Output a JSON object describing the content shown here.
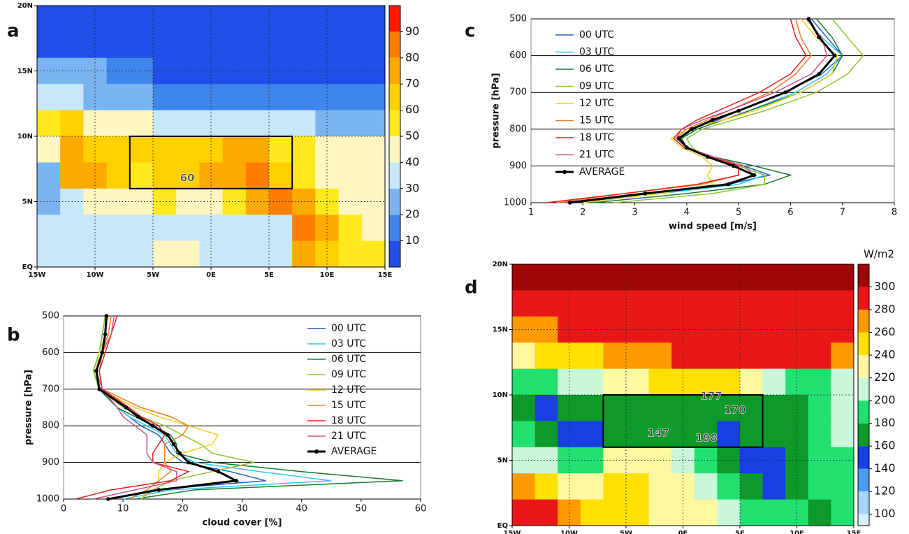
{
  "chart_data": [
    {
      "type": "map",
      "panel": "a",
      "xlim": [
        -15,
        15
      ],
      "ylim": [
        0,
        20
      ],
      "xticks": [
        {
          "value": -15,
          "label": "15W"
        },
        {
          "value": -10,
          "label": "10W"
        },
        {
          "value": -5,
          "label": "5W"
        },
        {
          "value": 0,
          "label": "0E"
        },
        {
          "value": 5,
          "label": "5E"
        },
        {
          "value": 10,
          "label": "10E"
        },
        {
          "value": 15,
          "label": "15E"
        }
      ],
      "yticks": [
        {
          "value": 0,
          "label": "EQ"
        },
        {
          "value": 5,
          "label": "5N"
        },
        {
          "value": 10,
          "label": "10N"
        },
        {
          "value": 15,
          "label": "15N"
        },
        {
          "value": 20,
          "label": "20N"
        }
      ],
      "clim": [
        0,
        100
      ],
      "cticks": [
        10,
        20,
        30,
        40,
        50,
        60,
        70,
        80,
        90
      ],
      "colors": [
        "#2050e8",
        "#3f86ec",
        "#7ab4f0",
        "#c6e8f8",
        "#fff6c0",
        "#ffe81e",
        "#ffd000",
        "#ffaa00",
        "#ff7e00",
        "#ff1a00"
      ],
      "annotations": [
        "60"
      ],
      "cells": [
        [
          5,
          5,
          5,
          5,
          5,
          5,
          5,
          5,
          5,
          5,
          5,
          5,
          5,
          5,
          5
        ],
        [
          5,
          5,
          5,
          5,
          5,
          5,
          5,
          5,
          5,
          5,
          5,
          5,
          5,
          5,
          5
        ],
        [
          25,
          25,
          25,
          15,
          15,
          5,
          5,
          5,
          5,
          5,
          5,
          5,
          5,
          5,
          5
        ],
        [
          35,
          30,
          25,
          25,
          20,
          15,
          15,
          15,
          15,
          15,
          10,
          10,
          15,
          15,
          15
        ],
        [
          55,
          60,
          45,
          40,
          40,
          35,
          35,
          35,
          30,
          30,
          30,
          30,
          25,
          25,
          25
        ],
        [
          45,
          75,
          65,
          60,
          60,
          60,
          60,
          65,
          75,
          75,
          55,
          50,
          45,
          45,
          45
        ],
        [
          25,
          75,
          75,
          65,
          55,
          60,
          65,
          70,
          75,
          80,
          65,
          50,
          45,
          45,
          40
        ],
        [
          25,
          35,
          45,
          40,
          45,
          50,
          45,
          45,
          55,
          75,
          85,
          75,
          55,
          45,
          45
        ],
        [
          35,
          35,
          35,
          35,
          35,
          35,
          35,
          35,
          35,
          35,
          35,
          80,
          75,
          50,
          45
        ],
        [
          35,
          35,
          35,
          35,
          35,
          45,
          45,
          35,
          35,
          35,
          35,
          70,
          65,
          55,
          55
        ]
      ]
    },
    {
      "type": "line",
      "panel": "b",
      "xlabel": "cloud cover [%]",
      "ylabel": "pressure [hPa]",
      "xlim": [
        0,
        60
      ],
      "xticks": [
        0,
        10,
        20,
        30,
        40,
        50,
        60
      ],
      "ylim": [
        500,
        1000
      ],
      "yreverse": true,
      "yticks": [
        500,
        600,
        700,
        800,
        900,
        1000
      ],
      "y": [
        500,
        550,
        600,
        650,
        700,
        750,
        775,
        800,
        825,
        850,
        875,
        900,
        925,
        950,
        975,
        1000
      ],
      "series": [
        {
          "name": "00 UTC",
          "color": "#1f5fbf",
          "values": [
            7,
            6.5,
            6,
            5,
            6,
            9,
            11,
            13,
            16,
            17,
            18,
            20,
            28,
            34,
            15,
            8
          ]
        },
        {
          "name": "03 UTC",
          "color": "#2ec8f0",
          "values": [
            7,
            6.5,
            6,
            5,
            6,
            9,
            11,
            14,
            17,
            18,
            19,
            22,
            33,
            45,
            18,
            10
          ]
        },
        {
          "name": "06 UTC",
          "color": "#1a7a30",
          "values": [
            7.5,
            7,
            6,
            5,
            6,
            9,
            12,
            15,
            18,
            19,
            19,
            25,
            40,
            57,
            22,
            12
          ]
        },
        {
          "name": "09 UTC",
          "color": "#8cc832",
          "values": [
            7,
            6.5,
            6,
            5,
            6,
            10,
            13,
            17,
            20,
            23,
            25,
            32,
            25,
            18,
            15,
            13
          ]
        },
        {
          "name": "12 UTC",
          "color": "#f0d020",
          "values": [
            7.5,
            7,
            6,
            5.5,
            6,
            12,
            16,
            21,
            26,
            25,
            20,
            17,
            16,
            16,
            14,
            13
          ]
        },
        {
          "name": "15 UTC",
          "color": "#f08020",
          "values": [
            8,
            7.5,
            6.5,
            6,
            6.5,
            13,
            18,
            21,
            20,
            17,
            17,
            17,
            18,
            16,
            14,
            11
          ]
        },
        {
          "name": "18 UTC",
          "color": "#e02020",
          "values": [
            9,
            8,
            7,
            6,
            6.5,
            11,
            13,
            16,
            17,
            16,
            15,
            15,
            21,
            18,
            8,
            2
          ]
        },
        {
          "name": "21 UTC",
          "color": "#d0508a",
          "values": [
            8.5,
            8,
            6.5,
            5.5,
            6.5,
            9,
            10,
            12,
            14,
            14,
            14,
            15,
            19,
            19,
            12,
            5
          ]
        },
        {
          "name": "AVERAGE",
          "color": "#000000",
          "markers": true,
          "values": [
            7.2,
            7,
            6.5,
            5.5,
            6,
            10.5,
            12.5,
            15,
            17.5,
            18.5,
            19.5,
            21,
            26,
            29,
            16,
            7.5
          ]
        }
      ]
    },
    {
      "type": "line",
      "panel": "c",
      "xlabel": "wind speed [m/s]",
      "ylabel": "pressure [hPa]",
      "xlim": [
        1,
        8
      ],
      "xticks": [
        1,
        2,
        3,
        4,
        5,
        6,
        7,
        8
      ],
      "ylim": [
        500,
        1000
      ],
      "yreverse": true,
      "yticks": [
        500,
        600,
        700,
        800,
        900,
        1000
      ],
      "y": [
        500,
        550,
        600,
        650,
        700,
        750,
        775,
        800,
        825,
        850,
        875,
        900,
        925,
        950,
        975,
        1000
      ],
      "series": [
        {
          "name": "00 UTC",
          "color": "#1f5fbf",
          "values": [
            6.4,
            6.7,
            7.0,
            6.6,
            5.9,
            5.0,
            4.6,
            4.1,
            3.9,
            4.0,
            4.5,
            5.1,
            5.6,
            4.8,
            3.3,
            1.8
          ]
        },
        {
          "name": "03 UTC",
          "color": "#2ec8f0",
          "values": [
            6.3,
            6.6,
            7.0,
            6.7,
            6.1,
            5.2,
            4.7,
            4.2,
            3.9,
            4.0,
            4.4,
            5.0,
            5.5,
            5.0,
            3.5,
            2.0
          ]
        },
        {
          "name": "06 UTC",
          "color": "#1a7a30",
          "values": [
            6.5,
            6.8,
            7.0,
            6.8,
            6.2,
            5.2,
            4.7,
            4.2,
            3.9,
            4.0,
            4.5,
            5.3,
            6.0,
            5.5,
            4.0,
            2.2
          ]
        },
        {
          "name": "09 UTC",
          "color": "#8cc832",
          "values": [
            6.8,
            7.1,
            7.4,
            7.1,
            6.5,
            5.5,
            4.9,
            4.3,
            4.0,
            4.1,
            4.4,
            5.0,
            5.5,
            5.5,
            4.5,
            2.6
          ]
        },
        {
          "name": "12 UTC",
          "color": "#f0d020",
          "values": [
            6.2,
            6.5,
            6.9,
            6.8,
            6.2,
            5.3,
            4.7,
            4.0,
            3.7,
            3.9,
            4.3,
            4.5,
            4.4,
            4.5,
            3.5,
            2.0
          ]
        },
        {
          "name": "15 UTC",
          "color": "#f08020",
          "values": [
            6.1,
            6.2,
            6.4,
            6.1,
            5.6,
            4.8,
            4.4,
            4.0,
            3.8,
            4.0,
            4.5,
            5.0,
            5.0,
            4.3,
            2.8,
            1.5
          ]
        },
        {
          "name": "18 UTC",
          "color": "#e02020",
          "values": [
            6.0,
            6.1,
            6.3,
            6.0,
            5.4,
            4.6,
            4.2,
            3.9,
            3.75,
            3.95,
            4.5,
            5.0,
            5.0,
            4.2,
            2.8,
            1.3
          ]
        },
        {
          "name": "21 UTC",
          "color": "#d0508a",
          "values": [
            6.3,
            6.6,
            6.7,
            6.4,
            5.7,
            4.8,
            4.3,
            3.9,
            3.8,
            4.0,
            4.5,
            5.1,
            5.3,
            4.7,
            3.1,
            1.6
          ]
        },
        {
          "name": "AVERAGE",
          "color": "#000000",
          "markers": true,
          "values": [
            6.35,
            6.55,
            6.85,
            6.55,
            5.9,
            5.0,
            4.5,
            4.1,
            3.85,
            4.0,
            4.4,
            4.9,
            5.3,
            4.8,
            3.2,
            1.75
          ]
        }
      ]
    },
    {
      "type": "map",
      "panel": "d",
      "colorbar_label": "W/m2",
      "xlim": [
        -15,
        15
      ],
      "ylim": [
        0,
        20
      ],
      "xticks": [
        {
          "value": -15,
          "label": "15W"
        },
        {
          "value": -10,
          "label": "10W"
        },
        {
          "value": -5,
          "label": "5W"
        },
        {
          "value": 0,
          "label": "0E"
        },
        {
          "value": 5,
          "label": "5E"
        },
        {
          "value": 10,
          "label": "10E"
        },
        {
          "value": 15,
          "label": "15E"
        }
      ],
      "yticks": [
        {
          "value": 0,
          "label": "EQ"
        },
        {
          "value": 5,
          "label": "5N"
        },
        {
          "value": 10,
          "label": "10N"
        },
        {
          "value": 15,
          "label": "15N"
        },
        {
          "value": 20,
          "label": "20N"
        }
      ],
      "clim": [
        90,
        320
      ],
      "cticks": [
        100,
        120,
        140,
        160,
        180,
        200,
        220,
        240,
        260,
        280,
        300
      ],
      "colors": [
        "#d6f0ff",
        "#a6d4ff",
        "#4a9cf0",
        "#1840e0",
        "#0e9a2a",
        "#22e070",
        "#c8f8d8",
        "#fff8a0",
        "#ffe000",
        "#ff9a00",
        "#e81818",
        "#a00808"
      ],
      "annotations": [
        "177",
        "170",
        "147",
        "198"
      ],
      "cells": [
        [
          310,
          310,
          310,
          310,
          310,
          310,
          310,
          310,
          310,
          310,
          310,
          310,
          310,
          310,
          310
        ],
        [
          295,
          295,
          295,
          295,
          295,
          295,
          295,
          295,
          295,
          295,
          295,
          295,
          295,
          295,
          295
        ],
        [
          265,
          270,
          280,
          285,
          290,
          290,
          290,
          290,
          290,
          290,
          290,
          290,
          290,
          290,
          290
        ],
        [
          230,
          240,
          250,
          255,
          265,
          270,
          275,
          280,
          285,
          285,
          285,
          285,
          285,
          280,
          275
        ],
        [
          190,
          195,
          205,
          215,
          225,
          235,
          240,
          245,
          250,
          240,
          220,
          200,
          185,
          190,
          210
        ],
        [
          175,
          145,
          165,
          170,
          170,
          170,
          170,
          170,
          170,
          170,
          170,
          165,
          170,
          185,
          200
        ],
        [
          190,
          175,
          145,
          150,
          170,
          170,
          165,
          170,
          170,
          150,
          165,
          170,
          175,
          185,
          200
        ],
        [
          205,
          200,
          185,
          195,
          225,
          235,
          225,
          210,
          190,
          175,
          145,
          145,
          170,
          185,
          195
        ],
        [
          260,
          250,
          230,
          230,
          240,
          250,
          235,
          225,
          205,
          180,
          170,
          150,
          175,
          180,
          190
        ],
        [
          290,
          285,
          270,
          255,
          245,
          250,
          235,
          235,
          220,
          200,
          185,
          180,
          180,
          175,
          180
        ]
      ]
    }
  ]
}
